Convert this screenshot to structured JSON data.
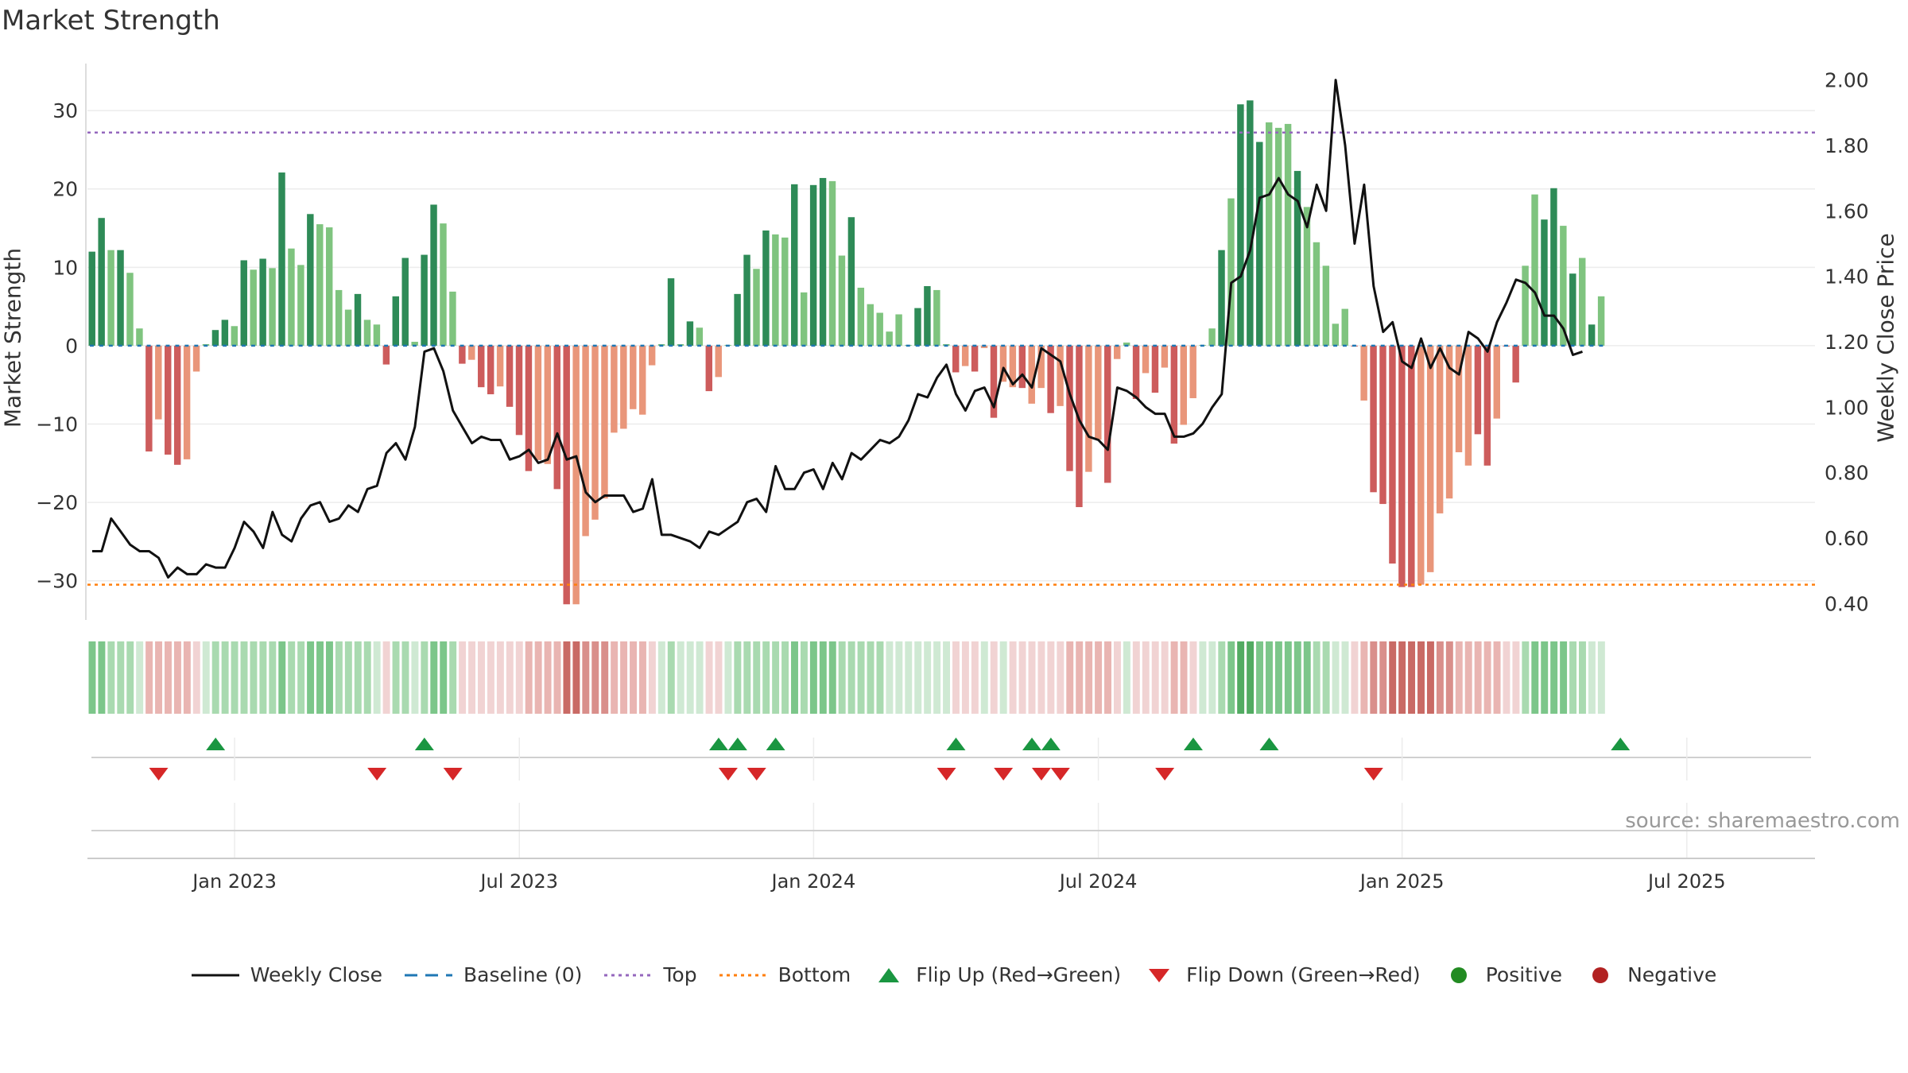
{
  "title": "Market Strength",
  "source": "source: sharemaestro.com",
  "legend": [
    {
      "label": "Weekly Close",
      "kind": "line"
    },
    {
      "label": "Baseline (0)",
      "kind": "dash"
    },
    {
      "label": "Top",
      "kind": "dot-purple"
    },
    {
      "label": "Bottom",
      "kind": "dot-orange"
    },
    {
      "label": "Flip Up (Red→Green)",
      "kind": "tri-up"
    },
    {
      "label": "Flip Down (Green→Red)",
      "kind": "tri-down"
    },
    {
      "label": "Positive",
      "kind": "dot-green"
    },
    {
      "label": "Negative",
      "kind": "dot-red"
    }
  ],
  "colors": {
    "pos_dark": "#2e8b57",
    "pos_light": "#7fc47f",
    "neg_dark": "#cd5c5c",
    "neg_light": "#e9967a",
    "line": "#111111",
    "baseline": "#1f77b4",
    "top": "#9467bd",
    "bottom": "#ff7f0e",
    "flip_up": "#1a9641",
    "flip_down": "#d62728"
  },
  "chart_data": {
    "type": "bar",
    "title": "Market Strength",
    "ylabel": "Market Strength",
    "y2label": "Weekly Close Price",
    "ylim": [
      -35,
      36
    ],
    "y2lim": [
      0.35,
      2.05
    ],
    "yticks": [
      30,
      20,
      10,
      0,
      -10,
      -20,
      -30
    ],
    "ytick_labels": [
      "30",
      "20",
      "10",
      "0",
      "−10",
      "−20",
      "−30"
    ],
    "y2ticks": [
      2.0,
      1.8,
      1.6,
      1.4,
      1.2,
      1.0,
      0.8,
      0.6,
      0.4
    ],
    "y2tick_labels": [
      "2.00",
      "1.80",
      "1.60",
      "1.40",
      "1.20",
      "1.00",
      "0.80",
      "0.60",
      "0.40"
    ],
    "xticks": [
      15.5,
      45.5,
      76.5,
      106.5,
      138.5,
      168.5
    ],
    "xtick_labels": [
      "Jan 2023",
      "Jul 2023",
      "Jan 2024",
      "Jul 2024",
      "Jan 2025",
      "Jul 2025"
    ],
    "x_domain": [
      0,
      182
    ],
    "top_level": 27.2,
    "bottom_level": -30.5,
    "strength": [
      12,
      16.3,
      12.2,
      12.2,
      9.3,
      2.2,
      -13.5,
      -9.4,
      -13.9,
      -15.2,
      -14.5,
      -3.3,
      0.2,
      2,
      3.3,
      2.5,
      10.9,
      9.7,
      11.1,
      9.9,
      22.1,
      12.4,
      10.3,
      16.8,
      15.5,
      15.1,
      7.1,
      4.6,
      6.6,
      3.3,
      2.7,
      -2.4,
      6.3,
      11.2,
      0.5,
      11.6,
      18,
      15.6,
      6.9,
      -2.3,
      -1.8,
      -5.3,
      -6.2,
      -5.2,
      -7.8,
      -11.4,
      -16,
      -14.6,
      -15.1,
      -18.3,
      -33,
      -33,
      -24.3,
      -22.2,
      -19.5,
      -11.1,
      -10.6,
      -8.1,
      -8.8,
      -2.5,
      0.2,
      8.6,
      0.2,
      3.1,
      2.3,
      -5.8,
      -4,
      0.1,
      6.6,
      11.6,
      9.8,
      14.7,
      14.2,
      13.8,
      20.6,
      6.8,
      20.5,
      21.4,
      21,
      11.5,
      16.4,
      7.4,
      5.3,
      4.2,
      1.8,
      4,
      0.1,
      4.8,
      7.6,
      7.1,
      0.2,
      -3.4,
      -2.6,
      -3.3,
      -0.3,
      -9.2,
      -4.6,
      -5.3,
      -5.4,
      -7.4,
      -5.4,
      -8.6,
      -7.7,
      -16,
      -20.6,
      -16.1,
      -12,
      -17.5,
      -1.7,
      0.4,
      -6.8,
      -3.5,
      -6,
      -2.8,
      -12.5,
      -10.1,
      -6.7,
      0.1,
      2.2,
      12.2,
      18.8,
      30.8,
      31.3,
      26,
      28.5,
      27.8,
      28.3,
      22.3,
      17.7,
      13.2,
      10.2,
      2.8,
      4.7,
      -0.1,
      -7,
      -18.7,
      -20.2,
      -27.8,
      -30.8,
      -30.8,
      -30.5,
      -28.9,
      -21.4,
      -19.5,
      -13.6,
      -15.3,
      -11.3,
      -15.3,
      -9.3,
      -0.1,
      -4.7,
      10.2,
      19.3,
      16.1,
      20.1,
      15.3,
      9.2,
      11.2,
      2.7,
      6.3
    ],
    "shade": [
      "d",
      "d",
      "l",
      "d",
      "l",
      "l",
      "d",
      "l",
      "d",
      "d",
      "l",
      "l",
      "l",
      "d",
      "d",
      "l",
      "d",
      "l",
      "d",
      "l",
      "d",
      "l",
      "l",
      "d",
      "l",
      "l",
      "l",
      "l",
      "d",
      "l",
      "l",
      "d",
      "d",
      "d",
      "l",
      "d",
      "d",
      "l",
      "l",
      "d",
      "l",
      "d",
      "d",
      "l",
      "d",
      "d",
      "d",
      "l",
      "l",
      "d",
      "d",
      "l",
      "l",
      "l",
      "l",
      "l",
      "l",
      "l",
      "l",
      "l",
      "l",
      "d",
      "l",
      "d",
      "l",
      "d",
      "l",
      "l",
      "d",
      "d",
      "l",
      "d",
      "l",
      "l",
      "d",
      "l",
      "d",
      "d",
      "l",
      "l",
      "d",
      "l",
      "l",
      "l",
      "l",
      "l",
      "l",
      "d",
      "d",
      "l",
      "l",
      "d",
      "l",
      "d",
      "l",
      "d",
      "l",
      "l",
      "d",
      "l",
      "l",
      "d",
      "l",
      "d",
      "d",
      "l",
      "l",
      "d",
      "l",
      "l",
      "d",
      "l",
      "d",
      "l",
      "d",
      "l",
      "l",
      "l",
      "l",
      "d",
      "l",
      "d",
      "d",
      "d",
      "l",
      "l",
      "l",
      "d",
      "l",
      "l",
      "l",
      "l",
      "l",
      "d",
      "l",
      "d",
      "d",
      "d",
      "d",
      "d",
      "l",
      "l",
      "l",
      "l",
      "l",
      "l",
      "d",
      "d",
      "l",
      "d",
      "d",
      "l",
      "l",
      "d",
      "d",
      "l",
      "d",
      "l",
      "d",
      "l",
      "d",
      "l",
      "l"
    ],
    "weekly_close": [
      0.56,
      0.56,
      0.66,
      0.62,
      0.58,
      0.56,
      0.56,
      0.54,
      0.48,
      0.51,
      0.49,
      0.49,
      0.52,
      0.51,
      0.51,
      0.57,
      0.65,
      0.62,
      0.57,
      0.68,
      0.61,
      0.59,
      0.66,
      0.7,
      0.71,
      0.65,
      0.66,
      0.7,
      0.68,
      0.75,
      0.76,
      0.86,
      0.89,
      0.84,
      0.94,
      1.17,
      1.18,
      1.11,
      0.99,
      0.94,
      0.89,
      0.91,
      0.9,
      0.9,
      0.84,
      0.85,
      0.87,
      0.83,
      0.84,
      0.92,
      0.84,
      0.85,
      0.74,
      0.71,
      0.73,
      0.73,
      0.73,
      0.68,
      0.69,
      0.78,
      0.61,
      0.61,
      0.6,
      0.59,
      0.57,
      0.62,
      0.61,
      0.63,
      0.65,
      0.71,
      0.72,
      0.68,
      0.82,
      0.75,
      0.75,
      0.8,
      0.81,
      0.75,
      0.83,
      0.78,
      0.86,
      0.84,
      0.87,
      0.9,
      0.89,
      0.91,
      0.96,
      1.04,
      1.03,
      1.09,
      1.13,
      1.04,
      0.99,
      1.05,
      1.06,
      1.0,
      1.12,
      1.07,
      1.1,
      1.06,
      1.18,
      1.16,
      1.14,
      1.04,
      0.96,
      0.91,
      0.9,
      0.87,
      1.06,
      1.05,
      1.03,
      1.0,
      0.98,
      0.98,
      0.91,
      0.91,
      0.92,
      0.95,
      1.0,
      1.04,
      1.38,
      1.4,
      1.48,
      1.64,
      1.65,
      1.7,
      1.65,
      1.63,
      1.55,
      1.68,
      1.6,
      2.0,
      1.8,
      1.5,
      1.68,
      1.37,
      1.23,
      1.26,
      1.14,
      1.12,
      1.21,
      1.12,
      1.18,
      1.12,
      1.1,
      1.23,
      1.21,
      1.17,
      1.26,
      1.32,
      1.39,
      1.38,
      1.35,
      1.28,
      1.28,
      1.24,
      1.16,
      1.17
    ],
    "heat": [
      "p3",
      "p3",
      "p2",
      "p2",
      "p2",
      "p1",
      "n2",
      "n2",
      "n2",
      "n2",
      "n2",
      "n1",
      "p1",
      "p2",
      "p2",
      "p2",
      "p2",
      "p2",
      "p2",
      "p2",
      "p3",
      "p2",
      "p2",
      "p3",
      "p3",
      "p3",
      "p2",
      "p2",
      "p2",
      "p2",
      "p1",
      "n1",
      "p2",
      "p2",
      "p1",
      "p2",
      "p3",
      "p3",
      "p2",
      "n1",
      "n1",
      "n1",
      "n1",
      "n1",
      "n1",
      "n1",
      "n2",
      "n2",
      "n2",
      "n2",
      "n4",
      "n4",
      "n3",
      "n3",
      "n3",
      "n2",
      "n2",
      "n2",
      "n2",
      "n1",
      "p1",
      "p2",
      "p1",
      "p1",
      "p1",
      "n1",
      "n1",
      "p1",
      "p2",
      "p2",
      "p2",
      "p2",
      "p2",
      "p2",
      "p3",
      "p2",
      "p3",
      "p3",
      "p3",
      "p2",
      "p2",
      "p2",
      "p2",
      "p2",
      "p1",
      "p1",
      "p1",
      "p1",
      "p1",
      "p1",
      "p1",
      "n1",
      "n1",
      "n1",
      "p1",
      "n1",
      "p1",
      "n1",
      "n1",
      "n1",
      "n1",
      "n1",
      "n1",
      "n2",
      "n2",
      "n2",
      "n2",
      "n2",
      "n1",
      "p1",
      "n1",
      "n1",
      "n1",
      "n1",
      "n2",
      "n2",
      "n1",
      "p1",
      "p1",
      "p2",
      "p3",
      "p4",
      "p4",
      "p3",
      "p3",
      "p3",
      "p3",
      "p3",
      "p3",
      "p2",
      "p2",
      "p1",
      "p1",
      "n1",
      "n2",
      "n3",
      "n3",
      "n4",
      "n4",
      "n4",
      "n4",
      "n4",
      "n3",
      "n3",
      "n2",
      "n2",
      "n2",
      "n2",
      "n2",
      "n1",
      "n1",
      "p2",
      "p3",
      "p3",
      "p3",
      "p3",
      "p2",
      "p2",
      "p1",
      "p1"
    ],
    "flip_up": [
      13.5,
      35.5,
      66.5,
      68.5,
      72.5,
      91.5,
      99.5,
      101.5,
      116.5,
      124.5,
      161.5
    ],
    "flip_down": [
      7.5,
      30.5,
      38.5,
      67.5,
      70.5,
      90.5,
      96.5,
      100.5,
      102.5,
      113.5,
      135.5
    ]
  }
}
